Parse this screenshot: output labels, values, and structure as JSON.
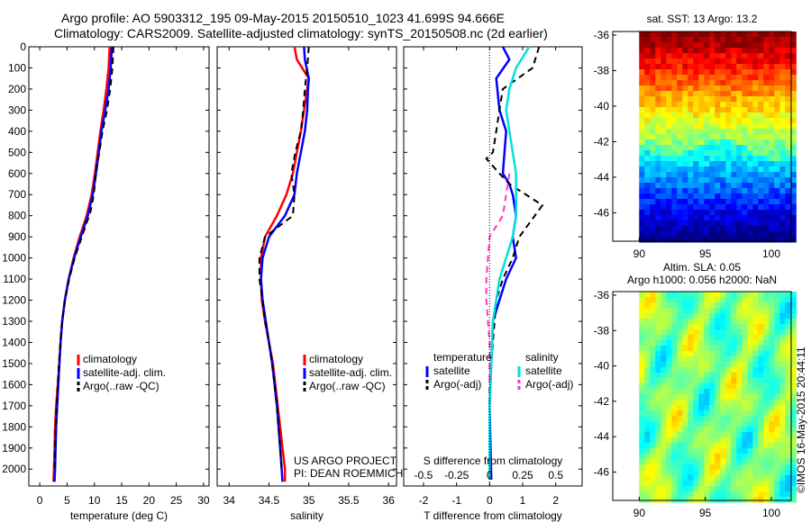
{
  "header": {
    "title_line1": "Argo profile: AO 5903312_195 09-May-2015 20150510_1023 41.699S 94.666E",
    "title_line2": "Climatology: CARS2009. Satellite-adjusted climatology: synTS_20150508.nc (2d earlier)"
  },
  "colors": {
    "climatology": "#ff0000",
    "satellite": "#0000ff",
    "argo": "#000000",
    "sal_satellite": "#00e0e0",
    "sal_argo": "#ff33cc"
  },
  "chart_data": [
    {
      "type": "line",
      "name": "temperature-profile",
      "xlabel": "temperature (deg C)",
      "xlim": [
        -2,
        31
      ],
      "xticks": [
        0,
        5,
        10,
        15,
        20,
        25,
        30
      ],
      "ylim": [
        2080,
        0
      ],
      "yticks": [
        0,
        100,
        200,
        300,
        400,
        500,
        600,
        700,
        800,
        900,
        1000,
        1100,
        1200,
        1300,
        1400,
        1500,
        1600,
        1700,
        1800,
        1900,
        2000
      ],
      "legend": [
        "climatology",
        "satellite-adj. clim.",
        "Argo(..raw -QC)"
      ],
      "series": [
        {
          "name": "climatology",
          "style": "solid",
          "color": "#ff0000",
          "points": [
            [
              12.8,
              0
            ],
            [
              12.6,
              100
            ],
            [
              12.2,
              200
            ],
            [
              11.7,
              300
            ],
            [
              11.1,
              400
            ],
            [
              10.6,
              500
            ],
            [
              10.1,
              600
            ],
            [
              9.5,
              700
            ],
            [
              8.6,
              800
            ],
            [
              7.3,
              900
            ],
            [
              6.2,
              1000
            ],
            [
              5.3,
              1100
            ],
            [
              4.6,
              1200
            ],
            [
              4.1,
              1300
            ],
            [
              3.8,
              1400
            ],
            [
              3.6,
              1500
            ],
            [
              3.3,
              1600
            ],
            [
              3.0,
              1700
            ],
            [
              2.8,
              1800
            ],
            [
              2.7,
              1900
            ],
            [
              2.6,
              2000
            ],
            [
              2.5,
              2060
            ]
          ]
        },
        {
          "name": "satellite-adj. clim.",
          "style": "solid",
          "color": "#0000ff",
          "points": [
            [
              13.2,
              0
            ],
            [
              13.0,
              100
            ],
            [
              12.6,
              200
            ],
            [
              12.0,
              300
            ],
            [
              11.3,
              400
            ],
            [
              10.8,
              500
            ],
            [
              10.3,
              600
            ],
            [
              9.7,
              700
            ],
            [
              8.8,
              800
            ],
            [
              7.5,
              900
            ],
            [
              6.3,
              1000
            ],
            [
              5.3,
              1100
            ],
            [
              4.6,
              1200
            ],
            [
              4.1,
              1300
            ],
            [
              3.8,
              1400
            ],
            [
              3.6,
              1500
            ],
            [
              3.4,
              1600
            ],
            [
              3.2,
              1700
            ],
            [
              3.0,
              1800
            ],
            [
              2.9,
              1900
            ],
            [
              2.8,
              2000
            ],
            [
              2.7,
              2060
            ]
          ]
        },
        {
          "name": "Argo(..raw -QC)",
          "style": "dashed",
          "color": "#000000",
          "points": [
            [
              13.5,
              0
            ],
            [
              13.3,
              100
            ],
            [
              12.9,
              200
            ],
            [
              12.3,
              300
            ],
            [
              11.5,
              400
            ],
            [
              10.9,
              500
            ],
            [
              10.3,
              600
            ],
            [
              9.9,
              700
            ],
            [
              9.3,
              780
            ],
            [
              7.7,
              900
            ],
            [
              6.4,
              1000
            ],
            [
              5.4,
              1100
            ],
            [
              4.6,
              1200
            ],
            [
              4.1,
              1300
            ],
            [
              3.8,
              1400
            ],
            [
              3.5,
              1500
            ],
            [
              3.3,
              1600
            ],
            [
              3.1,
              1700
            ],
            [
              2.9,
              1800
            ],
            [
              2.8,
              1900
            ],
            [
              2.7,
              2000
            ]
          ]
        }
      ]
    },
    {
      "type": "line",
      "name": "salinity-profile",
      "xlabel": "salinity",
      "xlim": [
        33.85,
        36.1
      ],
      "xticks": [
        34,
        34.5,
        35,
        35.5,
        36
      ],
      "ylim": [
        2080,
        0
      ],
      "legend": [
        "climatology",
        "satellite-adj. clim.",
        "Argo(..raw -QC)"
      ],
      "annotation": [
        "US ARGO PROJECT",
        "PI: DEAN ROEMMICH"
      ],
      "series": [
        {
          "name": "climatology",
          "style": "solid",
          "color": "#ff0000",
          "points": [
            [
              34.82,
              0
            ],
            [
              34.85,
              60
            ],
            [
              35.0,
              150
            ],
            [
              34.98,
              200
            ],
            [
              34.94,
              300
            ],
            [
              34.9,
              400
            ],
            [
              34.85,
              500
            ],
            [
              34.8,
              600
            ],
            [
              34.72,
              700
            ],
            [
              34.6,
              800
            ],
            [
              34.45,
              900
            ],
            [
              34.4,
              1000
            ],
            [
              34.4,
              1100
            ],
            [
              34.41,
              1200
            ],
            [
              34.45,
              1300
            ],
            [
              34.5,
              1400
            ],
            [
              34.55,
              1500
            ],
            [
              34.58,
              1600
            ],
            [
              34.61,
              1700
            ],
            [
              34.64,
              1800
            ],
            [
              34.67,
              1900
            ],
            [
              34.7,
              2000
            ],
            [
              34.7,
              2060
            ]
          ]
        },
        {
          "name": "satellite-adj. clim.",
          "style": "solid",
          "color": "#0000ff",
          "points": [
            [
              34.94,
              0
            ],
            [
              34.95,
              60
            ],
            [
              35.0,
              150
            ],
            [
              34.99,
              200
            ],
            [
              34.98,
              300
            ],
            [
              34.95,
              400
            ],
            [
              34.9,
              500
            ],
            [
              34.85,
              600
            ],
            [
              34.82,
              700
            ],
            [
              34.7,
              800
            ],
            [
              34.5,
              900
            ],
            [
              34.42,
              1000
            ],
            [
              34.4,
              1100
            ],
            [
              34.42,
              1200
            ],
            [
              34.46,
              1300
            ],
            [
              34.5,
              1400
            ],
            [
              34.54,
              1500
            ],
            [
              34.57,
              1600
            ],
            [
              34.6,
              1700
            ],
            [
              34.62,
              1800
            ],
            [
              34.64,
              1900
            ],
            [
              34.66,
              2000
            ],
            [
              34.67,
              2060
            ]
          ]
        },
        {
          "name": "Argo(..raw -QC)",
          "style": "dashed",
          "color": "#000000",
          "points": [
            [
              35.0,
              0
            ],
            [
              34.98,
              100
            ],
            [
              34.95,
              200
            ],
            [
              34.93,
              300
            ],
            [
              34.9,
              400
            ],
            [
              34.83,
              500
            ],
            [
              34.78,
              600
            ],
            [
              34.82,
              700
            ],
            [
              34.8,
              800
            ],
            [
              34.45,
              900
            ],
            [
              34.38,
              1000
            ],
            [
              34.38,
              1100
            ],
            [
              34.42,
              1200
            ],
            [
              34.45,
              1300
            ],
            [
              34.5,
              1400
            ],
            [
              34.54,
              1500
            ],
            [
              34.57,
              1600
            ],
            [
              34.6,
              1700
            ],
            [
              34.62,
              1800
            ],
            [
              34.64,
              1900
            ],
            [
              34.66,
              2000
            ]
          ]
        }
      ]
    },
    {
      "type": "line",
      "name": "difference-profile",
      "xlabel": "T difference from climatology",
      "xlabel_top": "S difference from climatology",
      "xlim": [
        -2.6,
        2.8
      ],
      "xticks": [
        -2,
        -1,
        0,
        1,
        2
      ],
      "xticks_top": [
        "-0.5",
        "-0.25",
        "0",
        "0.25",
        "0.5"
      ],
      "xticks_top_pos": [
        -2,
        -1,
        0,
        1,
        2
      ],
      "ylim": [
        2080,
        0
      ],
      "legend_groups": [
        {
          "title": "temperature",
          "items": [
            "satellite",
            "Argo(-adj)"
          ]
        },
        {
          "title": "salinity",
          "items": [
            "satellite",
            "Argo(-adj)"
          ]
        }
      ],
      "series": [
        {
          "name": "temperature satellite",
          "style": "solid",
          "color": "#0000ff",
          "points": [
            [
              0.4,
              0
            ],
            [
              0.6,
              60
            ],
            [
              0.2,
              150
            ],
            [
              0.3,
              300
            ],
            [
              0.5,
              400
            ],
            [
              0.4,
              600
            ],
            [
              0.6,
              650
            ],
            [
              0.7,
              700
            ],
            [
              0.8,
              800
            ],
            [
              0.7,
              900
            ],
            [
              0.8,
              1000
            ],
            [
              0.5,
              1100
            ],
            [
              0.3,
              1200
            ],
            [
              0.1,
              1300
            ],
            [
              0.05,
              1500
            ],
            [
              0.0,
              1700
            ],
            [
              0.05,
              2050
            ]
          ]
        },
        {
          "name": "temperature Argo(-adj)",
          "style": "dashed",
          "color": "#000000",
          "points": [
            [
              1.5,
              0
            ],
            [
              1.3,
              100
            ],
            [
              0.4,
              200
            ],
            [
              0.3,
              300
            ],
            [
              0.2,
              400
            ],
            [
              0.1,
              500
            ],
            [
              -0.1,
              530
            ],
            [
              0.3,
              600
            ],
            [
              0.6,
              650
            ],
            [
              1.6,
              750
            ],
            [
              0.9,
              900
            ],
            [
              0.7,
              1000
            ],
            [
              0.4,
              1100
            ],
            [
              0.2,
              1200
            ],
            [
              0.1,
              1400
            ],
            [
              0.0,
              1600
            ],
            [
              0.0,
              1800
            ]
          ]
        },
        {
          "name": "salinity satellite",
          "style": "solid",
          "color": "#00e0e0",
          "points": [
            [
              1.2,
              0
            ],
            [
              0.8,
              100
            ],
            [
              0.6,
              200
            ],
            [
              0.5,
              300
            ],
            [
              0.6,
              400
            ],
            [
              0.8,
              600
            ],
            [
              0.8,
              800
            ],
            [
              0.7,
              900
            ],
            [
              0.3,
              1100
            ],
            [
              0.1,
              1300
            ],
            [
              0.05,
              1500
            ],
            [
              0.0,
              1700
            ],
            [
              0.0,
              2050
            ]
          ]
        },
        {
          "name": "salinity Argo(-adj)",
          "style": "dashed",
          "color": "#ff33cc",
          "points": [
            [
              0.6,
              600
            ],
            [
              0.5,
              700
            ],
            [
              0.4,
              800
            ],
            [
              0.0,
              900
            ],
            [
              -0.05,
              1000
            ],
            [
              -0.1,
              1100
            ],
            [
              -0.1,
              1200
            ],
            [
              -0.05,
              1300
            ],
            [
              0.0,
              1400
            ],
            [
              0.0,
              1600
            ]
          ]
        }
      ]
    },
    {
      "type": "heatmap",
      "name": "sst-map",
      "title": "sat. SST: 13 Argo: 13.2",
      "xticks": [
        90,
        95,
        100
      ],
      "yticks": [
        -36,
        -38,
        -40,
        -42,
        -44,
        -46
      ],
      "xlim": [
        88,
        101.5
      ],
      "ylim": [
        -47.6,
        -35.8
      ],
      "colormap": "jet"
    },
    {
      "type": "heatmap",
      "name": "sla-map",
      "title_line1": "Altim. SLA: 0.05",
      "title_line2": "Argo h1000: 0.056 h2000: NaN",
      "xticks": [
        90,
        95,
        100
      ],
      "yticks": [
        -36,
        -38,
        -40,
        -42,
        -44,
        -46
      ],
      "xlim": [
        88,
        101.5
      ],
      "ylim": [
        -47.6,
        -35.8
      ],
      "colormap": "jet"
    }
  ],
  "footer": {
    "credit": "©IMOS 16-May-2015 20:44:11"
  }
}
